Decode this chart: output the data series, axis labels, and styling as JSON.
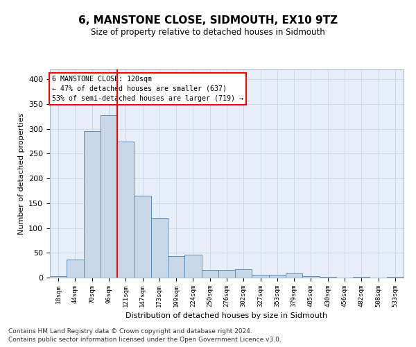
{
  "title": "6, MANSTONE CLOSE, SIDMOUTH, EX10 9TZ",
  "subtitle": "Size of property relative to detached houses in Sidmouth",
  "xlabel": "Distribution of detached houses by size in Sidmouth",
  "ylabel": "Number of detached properties",
  "categories": [
    "18sqm",
    "44sqm",
    "70sqm",
    "96sqm",
    "121sqm",
    "147sqm",
    "173sqm",
    "199sqm",
    "224sqm",
    "250sqm",
    "276sqm",
    "302sqm",
    "327sqm",
    "353sqm",
    "379sqm",
    "405sqm",
    "430sqm",
    "456sqm",
    "482sqm",
    "508sqm",
    "533sqm"
  ],
  "values": [
    3,
    37,
    295,
    327,
    275,
    165,
    120,
    44,
    46,
    15,
    15,
    17,
    6,
    6,
    8,
    3,
    1,
    0,
    2,
    0,
    2
  ],
  "bar_color": "#c8d8e8",
  "bar_edge_color": "#5b8db8",
  "marker_line_index": 4,
  "marker_label": "6 MANSTONE CLOSE: 120sqm",
  "annotation_line1": "← 47% of detached houses are smaller (637)",
  "annotation_line2": "53% of semi-detached houses are larger (719) →",
  "annotation_box_color": "white",
  "annotation_box_edge": "red",
  "marker_line_color": "red",
  "ylim": [
    0,
    420
  ],
  "yticks": [
    0,
    50,
    100,
    150,
    200,
    250,
    300,
    350,
    400
  ],
  "grid_color": "#d0d8e8",
  "bg_color": "#e8eef8",
  "footnote1": "Contains HM Land Registry data © Crown copyright and database right 2024.",
  "footnote2": "Contains public sector information licensed under the Open Government Licence v3.0."
}
